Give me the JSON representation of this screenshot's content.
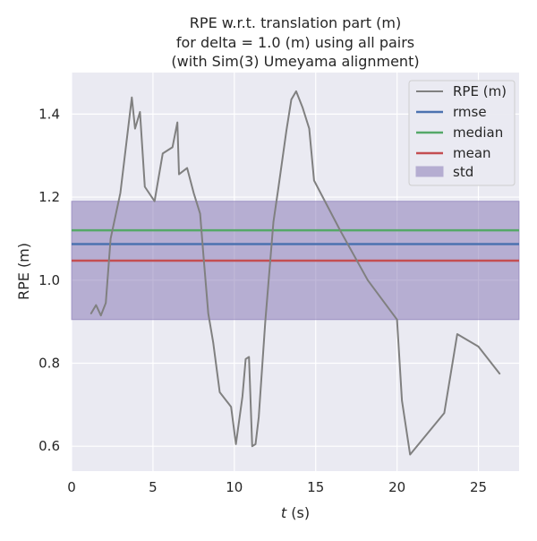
{
  "chart_data": {
    "type": "line",
    "title_lines": [
      "RPE w.r.t. translation part (m)",
      "for delta = 1.0 (m) using all pairs",
      "(with Sim(3) Umeyama alignment)"
    ],
    "xlabel_italic": "t",
    "xlabel_rest": " (s)",
    "ylabel": "RPE (m)",
    "xlim": [
      0,
      27.5
    ],
    "ylim": [
      0.54,
      1.5
    ],
    "xticks": [
      0,
      5,
      10,
      15,
      20,
      25
    ],
    "xtick_labels": [
      "0",
      "5",
      "10",
      "15",
      "20",
      "25"
    ],
    "yticks": [
      0.6,
      0.8,
      1.0,
      1.2,
      1.4
    ],
    "ytick_labels": [
      "0.6",
      "0.8",
      "1.0",
      "1.2",
      "1.4"
    ],
    "grid": true,
    "legend_position": "top-right",
    "colors": {
      "background": "#eaeaf2",
      "grid": "#ffffff",
      "rpe": "#808080",
      "rmse": "#4c72b0",
      "median": "#55a868",
      "mean": "#c44e52",
      "std": "#8172b2"
    },
    "series": [
      {
        "name": "RPE (m)",
        "x": [
          1.2,
          1.5,
          1.8,
          2.1,
          2.4,
          3.0,
          3.7,
          3.9,
          4.2,
          4.5,
          5.1,
          5.6,
          6.2,
          6.5,
          6.6,
          7.1,
          7.5,
          7.9,
          8.1,
          8.4,
          8.7,
          9.1,
          9.8,
          10.1,
          10.5,
          10.7,
          10.9,
          11.1,
          11.3,
          11.5,
          11.9,
          12.4,
          12.7,
          13.2,
          13.5,
          13.8,
          14.2,
          14.6,
          14.9,
          16.5,
          18.2,
          20.0,
          20.3,
          20.8,
          22.9,
          23.7,
          25.0,
          26.3
        ],
        "y": [
          0.92,
          0.94,
          0.915,
          0.945,
          1.1,
          1.21,
          1.44,
          1.365,
          1.405,
          1.225,
          1.19,
          1.305,
          1.32,
          1.38,
          1.255,
          1.27,
          1.21,
          1.16,
          1.06,
          0.92,
          0.85,
          0.73,
          0.695,
          0.605,
          0.72,
          0.81,
          0.815,
          0.6,
          0.605,
          0.67,
          0.9,
          1.14,
          1.22,
          1.36,
          1.435,
          1.455,
          1.415,
          1.365,
          1.24,
          1.12,
          1.0,
          0.905,
          0.71,
          0.58,
          0.68,
          0.87,
          0.84,
          0.775
        ]
      }
    ],
    "stats": {
      "rmse": 1.087,
      "median": 1.12,
      "mean": 1.047,
      "std_band": [
        0.905,
        1.19
      ]
    },
    "legend": [
      "RPE (m)",
      "rmse",
      "median",
      "mean",
      "std"
    ]
  }
}
